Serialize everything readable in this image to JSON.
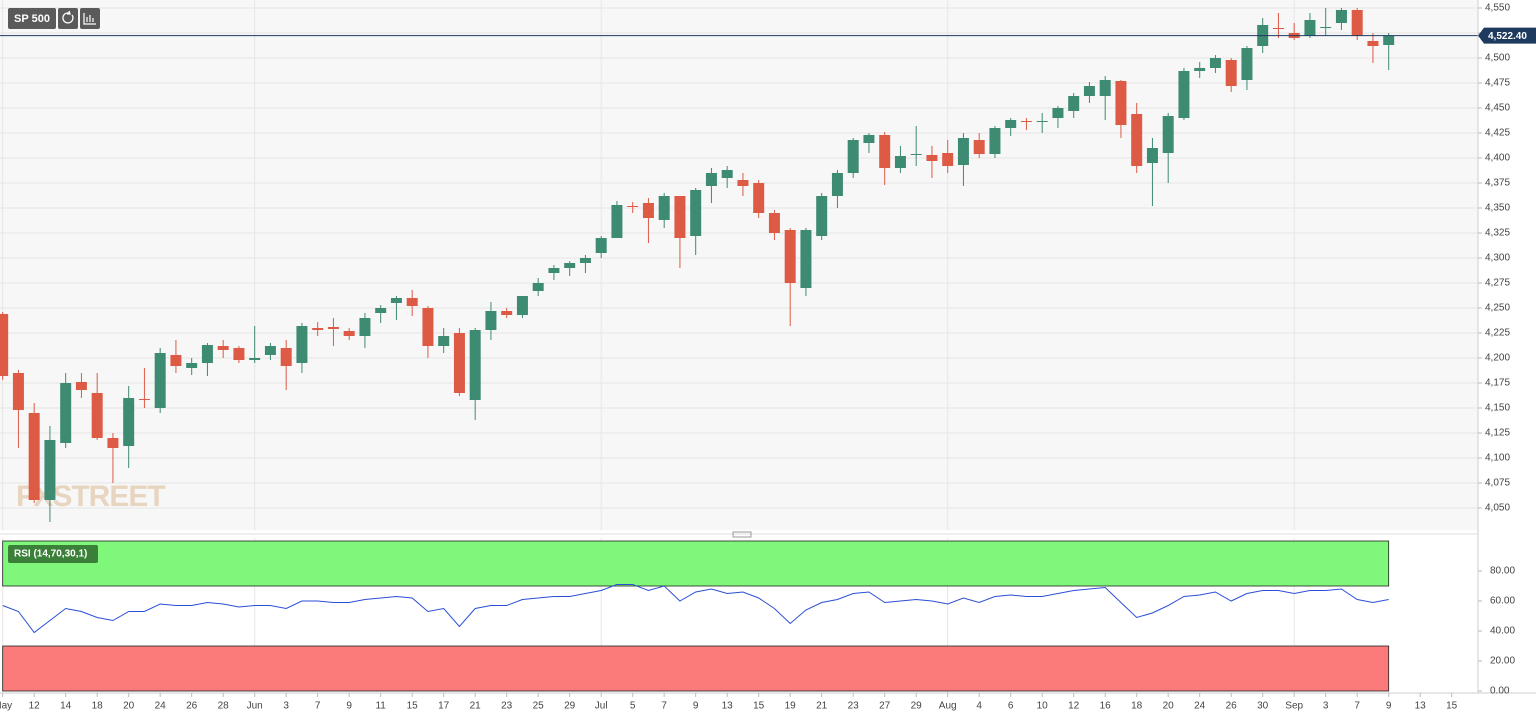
{
  "chart_data": {
    "type": "candlestick",
    "title": "SP 500",
    "watermark": "FXSTREET",
    "up_color": "#3d8b73",
    "down_color": "#dd5a45",
    "grid": true,
    "xlim": [
      -0.17,
      93.67
    ],
    "xticks": [
      {
        "value": 0,
        "label": "May"
      },
      {
        "value": 2,
        "label": "12"
      },
      {
        "value": 4,
        "label": "14"
      },
      {
        "value": 6,
        "label": "18"
      },
      {
        "value": 8,
        "label": "20"
      },
      {
        "value": 10,
        "label": "24"
      },
      {
        "value": 12,
        "label": "26"
      },
      {
        "value": 14,
        "label": "28"
      },
      {
        "value": 16,
        "label": "Jun"
      },
      {
        "value": 18,
        "label": "3"
      },
      {
        "value": 20,
        "label": "7"
      },
      {
        "value": 22,
        "label": "9"
      },
      {
        "value": 24,
        "label": "11"
      },
      {
        "value": 26,
        "label": "15"
      },
      {
        "value": 28,
        "label": "17"
      },
      {
        "value": 30,
        "label": "21"
      },
      {
        "value": 32,
        "label": "23"
      },
      {
        "value": 34,
        "label": "25"
      },
      {
        "value": 36,
        "label": "29"
      },
      {
        "value": 38,
        "label": "Jul"
      },
      {
        "value": 40,
        "label": "5"
      },
      {
        "value": 42,
        "label": "7"
      },
      {
        "value": 44,
        "label": "9"
      },
      {
        "value": 46,
        "label": "13"
      },
      {
        "value": 48,
        "label": "15"
      },
      {
        "value": 50,
        "label": "19"
      },
      {
        "value": 52,
        "label": "21"
      },
      {
        "value": 54,
        "label": "23"
      },
      {
        "value": 56,
        "label": "27"
      },
      {
        "value": 58,
        "label": "29"
      },
      {
        "value": 60,
        "label": "Aug"
      },
      {
        "value": 62,
        "label": "4"
      },
      {
        "value": 64,
        "label": "6"
      },
      {
        "value": 66,
        "label": "10"
      },
      {
        "value": 68,
        "label": "12"
      },
      {
        "value": 70,
        "label": "16"
      },
      {
        "value": 72,
        "label": "18"
      },
      {
        "value": 74,
        "label": "20"
      },
      {
        "value": 76,
        "label": "24"
      },
      {
        "value": 78,
        "label": "26"
      },
      {
        "value": 80,
        "label": "30"
      },
      {
        "value": 82,
        "label": "Sep"
      },
      {
        "value": 84,
        "label": "3"
      },
      {
        "value": 86,
        "label": "7"
      },
      {
        "value": 88,
        "label": "9"
      },
      {
        "value": 90,
        "label": "13"
      },
      {
        "value": 92,
        "label": "15"
      }
    ],
    "ylim": [
      4028,
      4558
    ],
    "yticks": [
      {
        "value": 4050,
        "label": "4,050"
      },
      {
        "value": 4075,
        "label": "4,075"
      },
      {
        "value": 4100,
        "label": "4,100"
      },
      {
        "value": 4125,
        "label": "4,125"
      },
      {
        "value": 4150,
        "label": "4,150"
      },
      {
        "value": 4175,
        "label": "4,175"
      },
      {
        "value": 4200,
        "label": "4,200"
      },
      {
        "value": 4225,
        "label": "4,225"
      },
      {
        "value": 4250,
        "label": "4,250"
      },
      {
        "value": 4275,
        "label": "4,275"
      },
      {
        "value": 4300,
        "label": "4,300"
      },
      {
        "value": 4325,
        "label": "4,325"
      },
      {
        "value": 4350,
        "label": "4,350"
      },
      {
        "value": 4375,
        "label": "4,375"
      },
      {
        "value": 4400,
        "label": "4,400"
      },
      {
        "value": 4425,
        "label": "4,425"
      },
      {
        "value": 4450,
        "label": "4,450"
      },
      {
        "value": 4475,
        "label": "4,475"
      },
      {
        "value": 4500,
        "label": "4,500"
      },
      {
        "value": 4525,
        "label": "4,525"
      },
      {
        "value": 4550,
        "label": "4,550"
      }
    ],
    "last_price": {
      "value": 4522.4,
      "label": "4,522.40",
      "color": "#1f3a5f"
    },
    "series": [
      {
        "name": "SP 500",
        "open": [
          4244,
          4185,
          4145,
          4058,
          4115,
          4176,
          4165,
          4120,
          4112,
          4159,
          4150,
          4203,
          4190,
          4195,
          4212,
          4210,
          4198,
          4203,
          4210,
          4195,
          4230,
          4231,
          4227,
          4222,
          4245,
          4255,
          4260,
          4250,
          4212,
          4225,
          4158,
          4228,
          4247,
          4243,
          4267,
          4285,
          4290,
          4295,
          4305,
          4320,
          4352,
          4355,
          4338,
          4362,
          4322,
          4372,
          4380,
          4378,
          4375,
          4345,
          4328,
          4270,
          4322,
          4362,
          4385,
          4415,
          4423,
          4390,
          4403,
          4403,
          4405,
          4393,
          4418,
          4404,
          4430,
          4437,
          4436,
          4440,
          4447,
          4462,
          4462,
          4477,
          4444,
          4395,
          4405,
          4440,
          4487,
          4490,
          4498,
          4478,
          4512,
          4530,
          4525,
          4522,
          4530,
          4535,
          4548,
          4517,
          4513
        ],
        "high": [
          4246,
          4188,
          4155,
          4132,
          4185,
          4185,
          4185,
          4125,
          4172,
          4190,
          4210,
          4218,
          4200,
          4215,
          4218,
          4212,
          4232,
          4215,
          4218,
          4235,
          4236,
          4240,
          4230,
          4245,
          4253,
          4262,
          4268,
          4252,
          4230,
          4230,
          4230,
          4256,
          4250,
          4262,
          4280,
          4293,
          4297,
          4303,
          4322,
          4357,
          4356,
          4360,
          4365,
          4362,
          4370,
          4390,
          4392,
          4385,
          4378,
          4348,
          4330,
          4330,
          4365,
          4388,
          4420,
          4425,
          4426,
          4412,
          4432,
          4412,
          4418,
          4425,
          4425,
          4432,
          4440,
          4440,
          4445,
          4452,
          4465,
          4476,
          4482,
          4478,
          4455,
          4420,
          4445,
          4490,
          4496,
          4503,
          4500,
          4512,
          4540,
          4545,
          4535,
          4545,
          4550,
          4550,
          4550,
          4525,
          4525
        ],
        "low": [
          4178,
          4110,
          4055,
          4036,
          4110,
          4160,
          4118,
          4075,
          4090,
          4150,
          4145,
          4185,
          4183,
          4182,
          4200,
          4195,
          4195,
          4198,
          4168,
          4185,
          4222,
          4212,
          4218,
          4210,
          4235,
          4238,
          4242,
          4200,
          4205,
          4162,
          4138,
          4218,
          4240,
          4240,
          4262,
          4278,
          4282,
          4285,
          4300,
          4320,
          4345,
          4315,
          4330,
          4290,
          4303,
          4355,
          4370,
          4362,
          4340,
          4318,
          4232,
          4262,
          4318,
          4350,
          4380,
          4405,
          4373,
          4385,
          4392,
          4380,
          4385,
          4372,
          4400,
          4400,
          4422,
          4428,
          4425,
          4430,
          4440,
          4455,
          4438,
          4420,
          4385,
          4352,
          4375,
          4438,
          4480,
          4485,
          4466,
          4468,
          4505,
          4520,
          4518,
          4520,
          4522,
          4528,
          4518,
          4495,
          4488
        ],
        "close": [
          4182,
          4148,
          4058,
          4118,
          4175,
          4168,
          4120,
          4110,
          4160,
          4158,
          4205,
          4192,
          4195,
          4213,
          4208,
          4198,
          4200,
          4212,
          4192,
          4232,
          4228,
          4229,
          4222,
          4240,
          4250,
          4260,
          4252,
          4212,
          4222,
          4165,
          4228,
          4247,
          4243,
          4262,
          4275,
          4290,
          4295,
          4300,
          4320,
          4353,
          4351,
          4340,
          4362,
          4320,
          4368,
          4385,
          4388,
          4372,
          4345,
          4325,
          4275,
          4328,
          4362,
          4385,
          4418,
          4423,
          4390,
          4402,
          4404,
          4397,
          4392,
          4420,
          4404,
          4430,
          4438,
          4436,
          4437,
          4450,
          4462,
          4472,
          4478,
          4433,
          4392,
          4410,
          4442,
          4487,
          4490,
          4500,
          4472,
          4510,
          4533,
          4529,
          4520,
          4538,
          4531,
          4548,
          4522,
          4512,
          4522
        ]
      }
    ],
    "rsi": {
      "name": "RSI (14,70,30,1)",
      "color": "#2a4fd6",
      "overbought": 70,
      "oversold": 30,
      "overbought_color": "#7ef77a",
      "oversold_color": "#fb7b7b",
      "ylim": [
        0,
        100
      ],
      "yticks": [
        {
          "value": 0,
          "label": "0.00"
        },
        {
          "value": 20,
          "label": "20.00"
        },
        {
          "value": 40,
          "label": "40.00"
        },
        {
          "value": 60,
          "label": "60.00"
        },
        {
          "value": 80,
          "label": "80.00"
        }
      ],
      "values": [
        57,
        53,
        39,
        47,
        55,
        53,
        49,
        47,
        53,
        53,
        58,
        57,
        57,
        59,
        58,
        56,
        57,
        57,
        55,
        60,
        60,
        59,
        59,
        61,
        62,
        63,
        62,
        53,
        55,
        43,
        55,
        57,
        57,
        61,
        62,
        63,
        63,
        65,
        67,
        71,
        71,
        67,
        70,
        60,
        66,
        68,
        65,
        66,
        62,
        55,
        45,
        54,
        59,
        61,
        65,
        66,
        59,
        60,
        61,
        60,
        58,
        62,
        59,
        63,
        64,
        63,
        63,
        65,
        67,
        68,
        69,
        59,
        49,
        52,
        57,
        63,
        64,
        66,
        60,
        65,
        67,
        67,
        65,
        67,
        67,
        68,
        61,
        59,
        61
      ]
    }
  }
}
